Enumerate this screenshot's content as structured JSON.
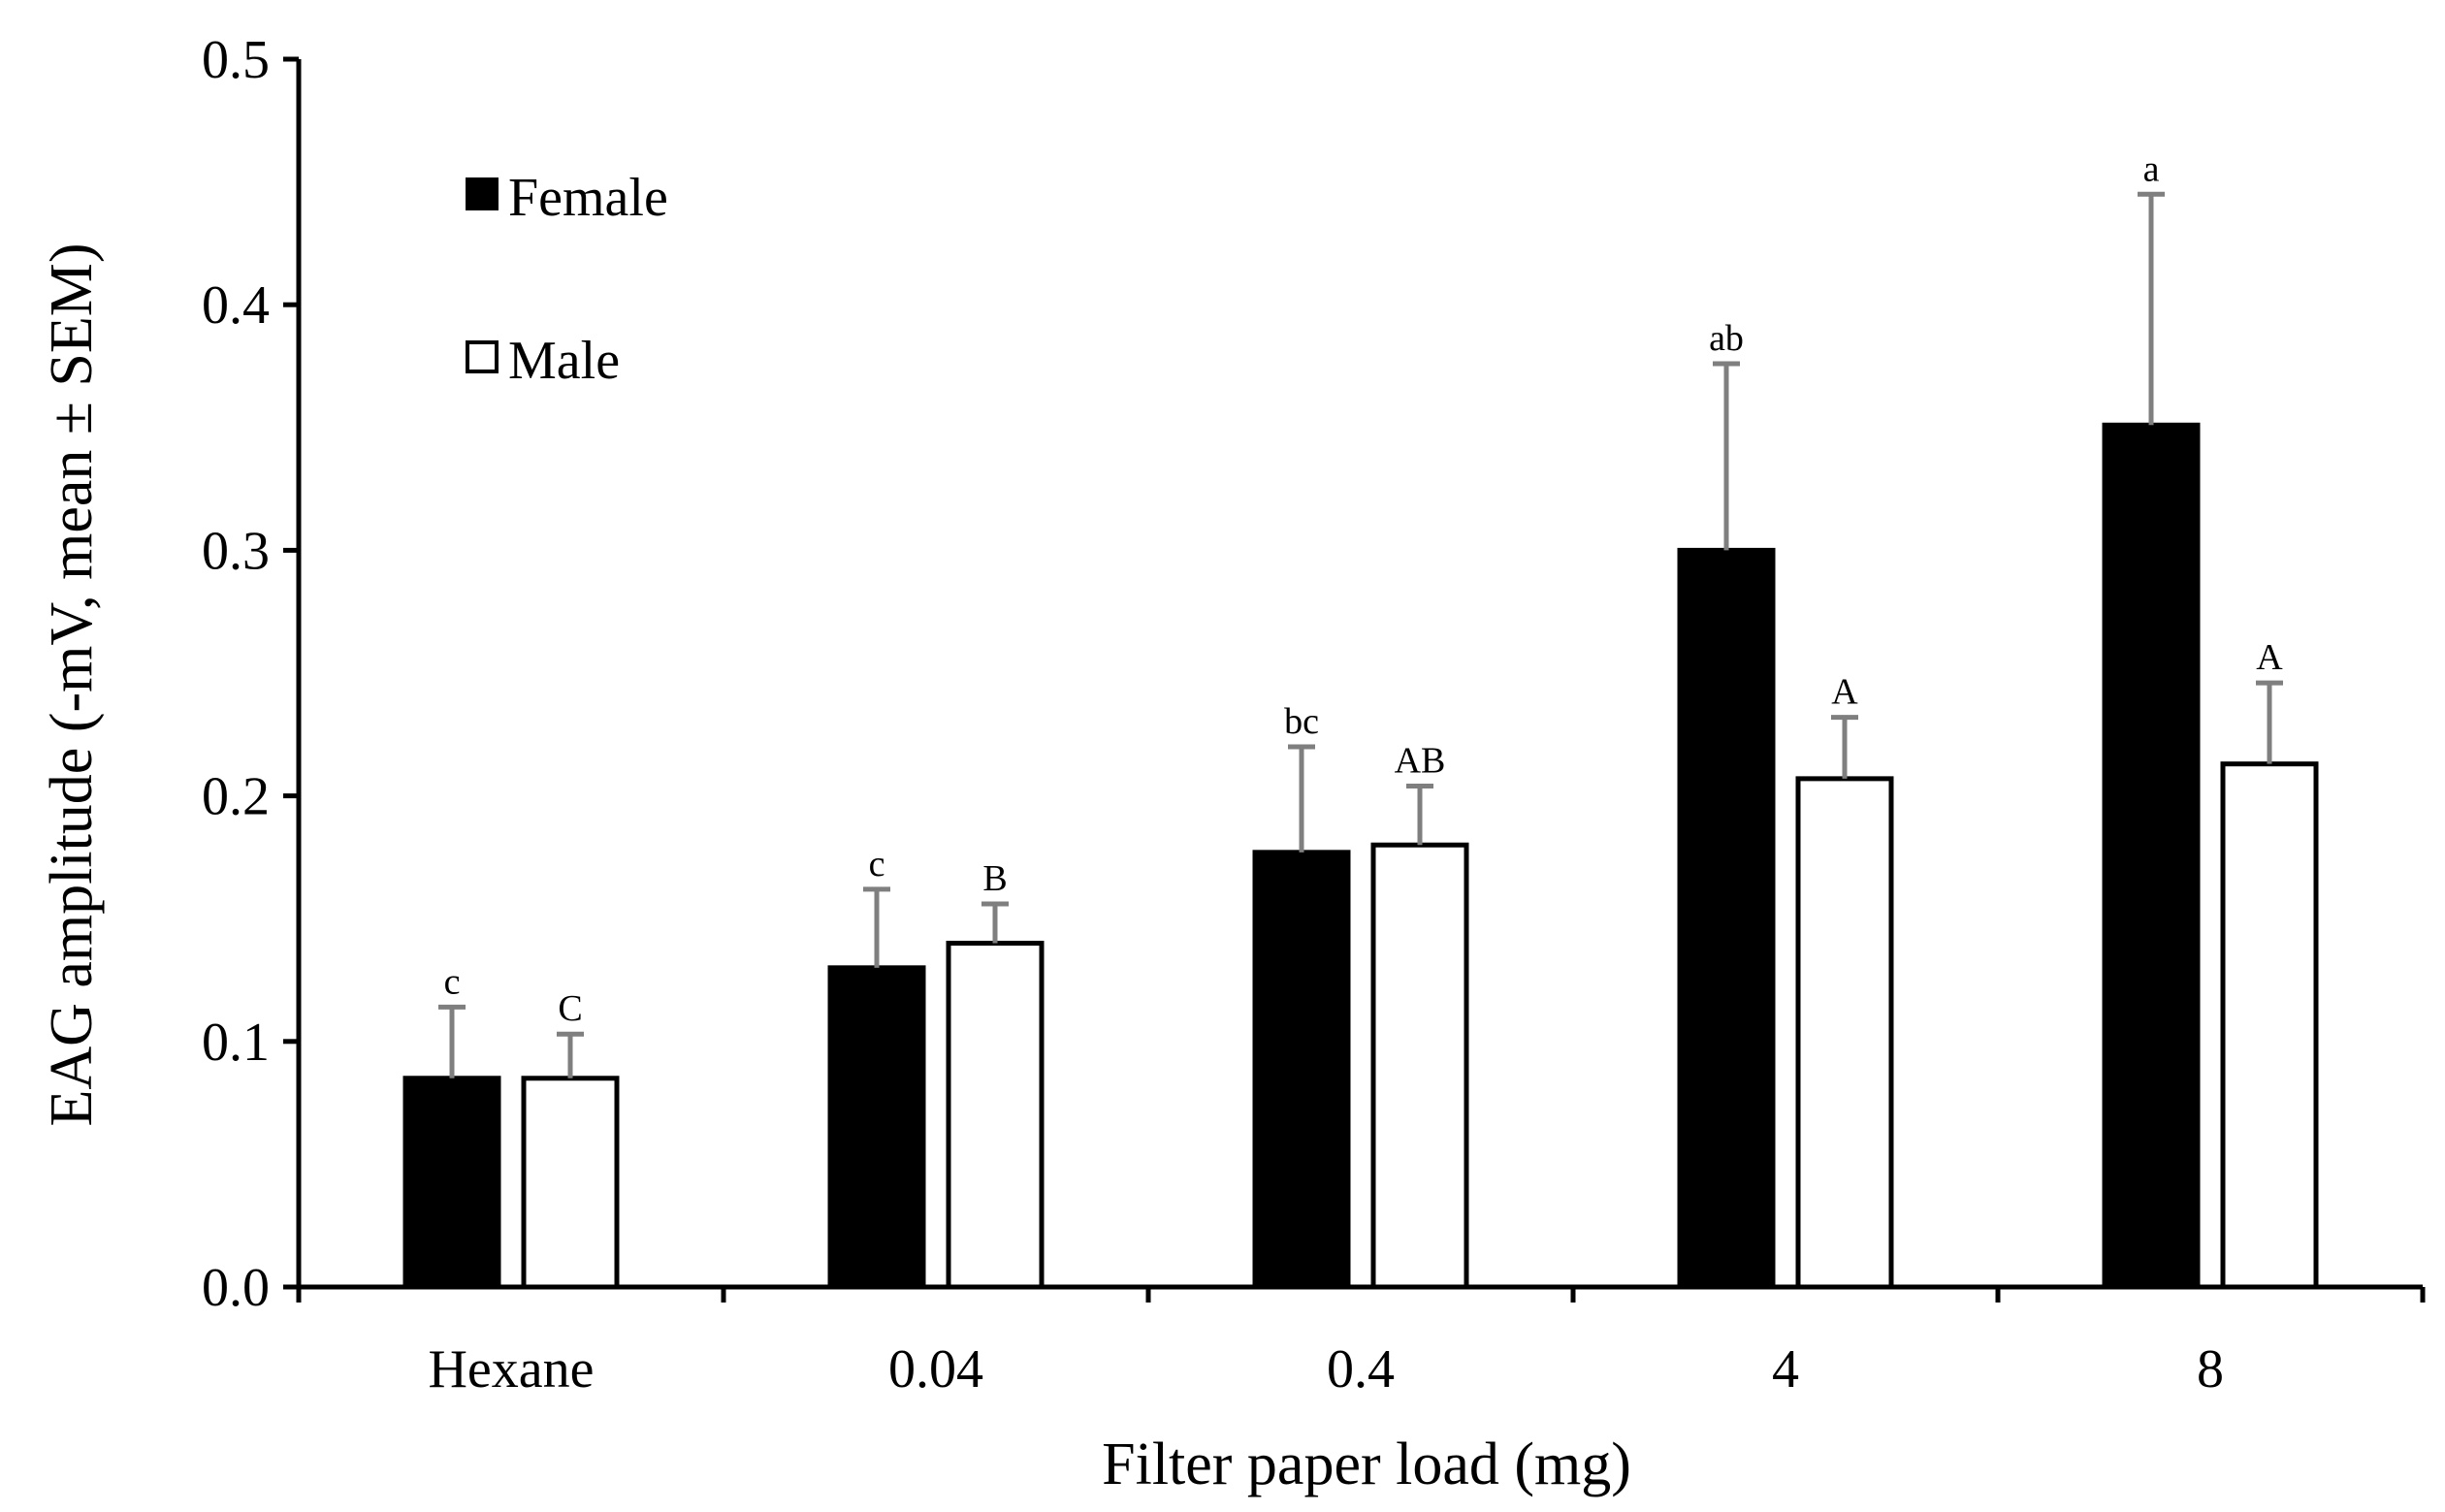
{
  "chart_data": {
    "type": "bar",
    "title": "",
    "xlabel": "Filter paper load (mg)",
    "ylabel": "EAG amplitude (-mV, mean ± SEM)",
    "categories": [
      "Hexane",
      "0.04",
      "0.4",
      "4",
      "8"
    ],
    "ylim": [
      0,
      0.5
    ],
    "yticks": [
      0.0,
      0.1,
      0.2,
      0.3,
      0.4,
      0.5
    ],
    "ytick_labels": [
      "0.0",
      "0.1",
      "0.2",
      "0.3",
      "0.4",
      "0.5"
    ],
    "legend_position": "top-left",
    "series": [
      {
        "name": "Female",
        "color": "#000000",
        "values": [
          0.085,
          0.13,
          0.177,
          0.3,
          0.351
        ],
        "errors": [
          0.029,
          0.032,
          0.043,
          0.076,
          0.094
        ],
        "labels": [
          "c",
          "c",
          "bc",
          "ab",
          "a"
        ]
      },
      {
        "name": "Male",
        "color": "#ffffff",
        "values": [
          0.085,
          0.14,
          0.18,
          0.207,
          0.213
        ],
        "errors": [
          0.018,
          0.016,
          0.024,
          0.025,
          0.033
        ],
        "labels": [
          "C",
          "B",
          "AB",
          "A",
          "A"
        ]
      }
    ]
  }
}
